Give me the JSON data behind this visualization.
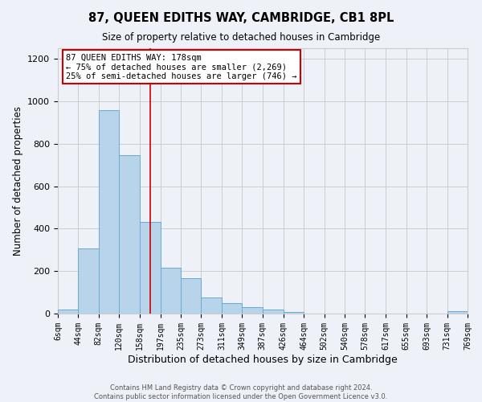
{
  "title": "87, QUEEN EDITHS WAY, CAMBRIDGE, CB1 8PL",
  "subtitle": "Size of property relative to detached houses in Cambridge",
  "xlabel": "Distribution of detached houses by size in Cambridge",
  "ylabel": "Number of detached properties",
  "footer_line1": "Contains HM Land Registry data © Crown copyright and database right 2024.",
  "footer_line2": "Contains public sector information licensed under the Open Government Licence v3.0.",
  "bar_edges": [
    6,
    44,
    82,
    120,
    158,
    197,
    235,
    273,
    311,
    349,
    387,
    426,
    464,
    502,
    540,
    578,
    617,
    655,
    693,
    731,
    769
  ],
  "bar_heights": [
    20,
    305,
    960,
    745,
    430,
    215,
    165,
    75,
    48,
    32,
    18,
    8,
    0,
    0,
    0,
    0,
    0,
    0,
    0,
    10
  ],
  "tick_labels": [
    "6sqm",
    "44sqm",
    "82sqm",
    "120sqm",
    "158sqm",
    "197sqm",
    "235sqm",
    "273sqm",
    "311sqm",
    "349sqm",
    "387sqm",
    "426sqm",
    "464sqm",
    "502sqm",
    "540sqm",
    "578sqm",
    "617sqm",
    "655sqm",
    "693sqm",
    "731sqm",
    "769sqm"
  ],
  "bar_color": "#b8d4ea",
  "bar_edge_color": "#6aaad4",
  "vline_x": 178,
  "vline_color": "#cc0000",
  "annotation_line1": "87 QUEEN EDITHS WAY: 178sqm",
  "annotation_line2": "← 75% of detached houses are smaller (2,269)",
  "annotation_line3": "25% of semi-detached houses are larger (746) →",
  "annotation_box_color": "#cc0000",
  "annotation_fill_color": "#ffffff",
  "ylim": [
    0,
    1250
  ],
  "yticks": [
    0,
    200,
    400,
    600,
    800,
    1000,
    1200
  ],
  "grid_color": "#cccccc",
  "bg_color": "#eef2f8"
}
